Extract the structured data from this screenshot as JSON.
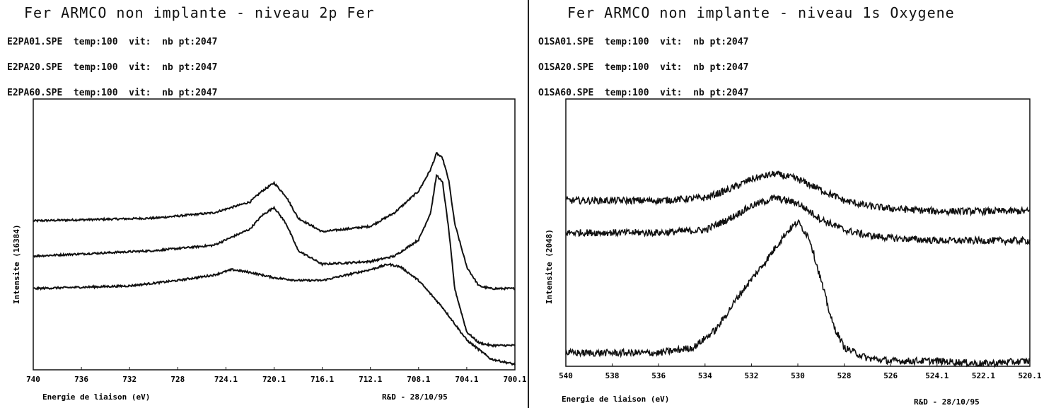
{
  "chart_data": [
    {
      "type": "line",
      "title": "Fer ARMCO non implante - niveau 2p Fer",
      "files": [
        "E2PA01.SPE  temp:100  vit:  nb pt:2047",
        "E2PA20.SPE  temp:100  vit:  nb pt:2047",
        "E2PA60.SPE  temp:100  vit:  nb pt:2047"
      ],
      "xlabel": "Energie de liaison  (eV)",
      "ylabel": "Intensite  (16384)",
      "stamp": "R&D - 28/10/95",
      "xlim": [
        740,
        700
      ],
      "ylim": [
        0,
        100
      ],
      "x_ticks": [
        "740",
        "736",
        "732",
        "728",
        "724.1",
        "720.1",
        "716.1",
        "712.1",
        "708.1",
        "704.1",
        "700.1"
      ],
      "series": [
        {
          "x": [
            740,
            730,
            725,
            722,
            721,
            720,
            719,
            718,
            716,
            712,
            710,
            708,
            707,
            706.5,
            706,
            705.5,
            705,
            704,
            703,
            702,
            700
          ],
          "y": [
            55,
            56,
            58,
            62,
            66,
            69,
            64,
            56,
            51,
            53,
            58,
            66,
            74,
            80,
            78,
            70,
            54,
            38,
            31,
            30,
            30
          ]
        },
        {
          "x": [
            740,
            730,
            725,
            722,
            721,
            720,
            719,
            718,
            716,
            712,
            710,
            708,
            707,
            706.5,
            706,
            705.5,
            705,
            704,
            703,
            702,
            700
          ],
          "y": [
            42,
            44,
            46,
            52,
            57,
            60,
            54,
            44,
            39,
            40,
            42,
            48,
            58,
            72,
            69,
            52,
            30,
            14,
            10,
            9,
            9
          ]
        },
        {
          "x": [
            740,
            732,
            728,
            725,
            723.5,
            722,
            720,
            718,
            716,
            714,
            712,
            710.5,
            709.5,
            708,
            706,
            704,
            702,
            700
          ],
          "y": [
            30,
            31,
            33,
            35,
            37,
            36,
            34,
            33,
            33,
            35,
            37,
            39,
            38,
            33,
            23,
            11,
            4,
            2
          ]
        }
      ]
    },
    {
      "type": "line",
      "title": "Fer ARMCO non implante - niveau 1s Oxygene",
      "files": [
        "O1SA01.SPE  temp:100  vit:  nb pt:2047",
        "O1SA20.SPE  temp:100  vit:  nb pt:2047",
        "O1SA60.SPE  temp:100  vit:  nb pt:2047"
      ],
      "xlabel": "Energie de liaison  (eV)",
      "ylabel": "Intensite  (2048)",
      "stamp": "R&D - 28/10/95",
      "xlim": [
        540,
        520
      ],
      "ylim": [
        0,
        100
      ],
      "x_ticks": [
        "540",
        "538",
        "536",
        "534",
        "532",
        "530",
        "528",
        "526",
        "524.1",
        "522.1",
        "520.1"
      ],
      "series": [
        {
          "x": [
            540,
            536,
            534,
            533,
            532,
            531,
            530,
            529,
            528,
            527,
            526,
            524,
            520
          ],
          "y": [
            62,
            62,
            63,
            66,
            70,
            72,
            70,
            66,
            62,
            60,
            59,
            58,
            58
          ]
        },
        {
          "x": [
            540,
            536,
            534,
            533,
            532,
            531,
            530,
            529,
            528,
            527,
            526,
            524,
            520
          ],
          "y": [
            50,
            50,
            51,
            55,
            60,
            63,
            61,
            55,
            51,
            49,
            48,
            47,
            47
          ]
        },
        {
          "x": [
            540,
            536,
            534.5,
            533.5,
            532.5,
            531.5,
            530.5,
            530,
            529.5,
            529,
            528.5,
            528,
            527,
            526,
            524,
            522,
            520
          ],
          "y": [
            5,
            5,
            7,
            14,
            27,
            38,
            50,
            54,
            48,
            32,
            16,
            7,
            3,
            2,
            2,
            1,
            2
          ]
        }
      ]
    }
  ]
}
